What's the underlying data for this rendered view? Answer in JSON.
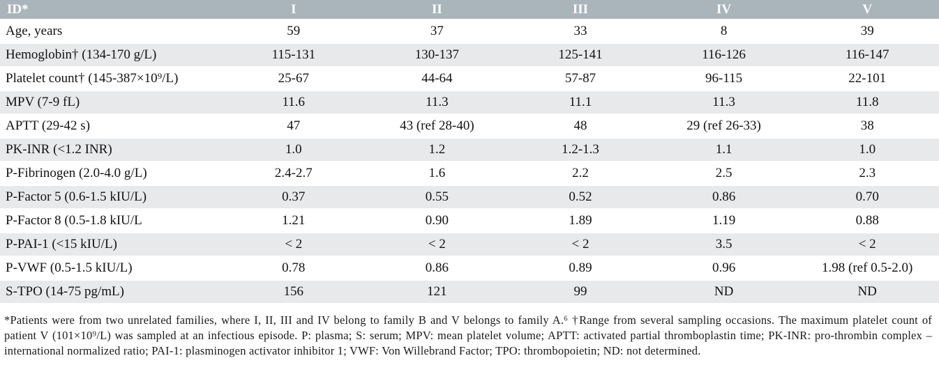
{
  "colors": {
    "header_bg": "#a9b4bb",
    "header_text": "#ffffff",
    "row_alt_bg": "#e8e9ea",
    "text": "#121212"
  },
  "table": {
    "header": {
      "id": "ID*",
      "cols": [
        "I",
        "II",
        "III",
        "IV",
        "V"
      ]
    },
    "rows": [
      {
        "label": "Age, years",
        "values": [
          "59",
          "37",
          "33",
          "8",
          "39"
        ]
      },
      {
        "label": "Hemoglobin† (134-170 g/L)",
        "values": [
          "115-131",
          "130-137",
          "125-141",
          "116-126",
          "116-147"
        ]
      },
      {
        "label": "Platelet count† (145-387×10⁹/L)",
        "values": [
          "25-67",
          "44-64",
          "57-87",
          "96-115",
          "22-101"
        ]
      },
      {
        "label": "MPV (7-9 fL)",
        "values": [
          "11.6",
          "11.3",
          "11.1",
          "11.3",
          "11.8"
        ]
      },
      {
        "label": "APTT (29-42 s)",
        "values": [
          "47",
          "43 (ref 28-40)",
          "48",
          "29 (ref 26-33)",
          "38"
        ]
      },
      {
        "label": "PK-INR (<1.2 INR)",
        "values": [
          "1.0",
          "1.2",
          "1.2-1.3",
          "1.1",
          "1.0"
        ]
      },
      {
        "label": "P-Fibrinogen (2.0-4.0 g/L)",
        "values": [
          "2.4-2.7",
          "1.6",
          "2.2",
          "2.5",
          "2.3"
        ]
      },
      {
        "label": "P-Factor 5 (0.6-1.5 kIU/L)",
        "values": [
          "0.37",
          "0.55",
          "0.52",
          "0.86",
          "0.70"
        ]
      },
      {
        "label": "P-Factor 8 (0.5-1.8 kIU/L",
        "values": [
          "1.21",
          "0.90",
          "1.89",
          "1.19",
          "0.88"
        ]
      },
      {
        "label": "P-PAI-1 (<15 kIU/L)",
        "values": [
          "< 2",
          "< 2",
          "< 2",
          "3.5",
          "< 2"
        ]
      },
      {
        "label": "P-VWF (0.5-1.5 kIU/L)",
        "values": [
          "0.78",
          "0.86",
          "0.89",
          "0.96",
          "1.98 (ref 0.5-2.0)"
        ]
      },
      {
        "label": "S-TPO (14-75 pg/mL)",
        "values": [
          "156",
          "121",
          "99",
          "ND",
          "ND"
        ]
      }
    ]
  },
  "footnote": "*Patients were from two unrelated families, where I, II, III and IV belong to family B and V belongs to family A.⁶ †Range from several sampling occasions. The maximum platelet count of patient V (101×10⁹/L) was sampled at an infectious episode. P: plasma; S: serum; MPV: mean platelet volume; APTT: activated partial thromboplastin time; PK-INR: pro-thrombin complex – international normalized ratio; PAI-1: plasminogen activator inhibitor 1; VWF: Von Willebrand Factor; TPO: thrombopoietin; ND: not determined."
}
